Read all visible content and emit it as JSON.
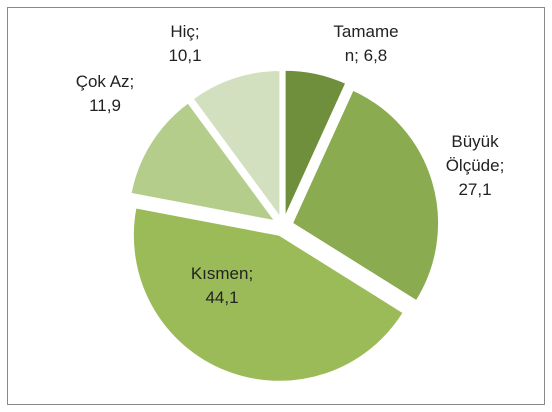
{
  "chart_data": {
    "type": "pie",
    "values": [
      6.8,
      27.1,
      44.1,
      11.9,
      10.1
    ],
    "value_labels": [
      "Tamamen; 6,8",
      "Büyük Ölçüde; 27,1",
      "Kısmen; 44,1",
      "Çok Az; 11,9",
      "Hiç; 10,1"
    ],
    "colors": [
      "#6f8f3c",
      "#8aab4f",
      "#9bbb59",
      "#b5cd8b",
      "#d3e0bf"
    ]
  }
}
